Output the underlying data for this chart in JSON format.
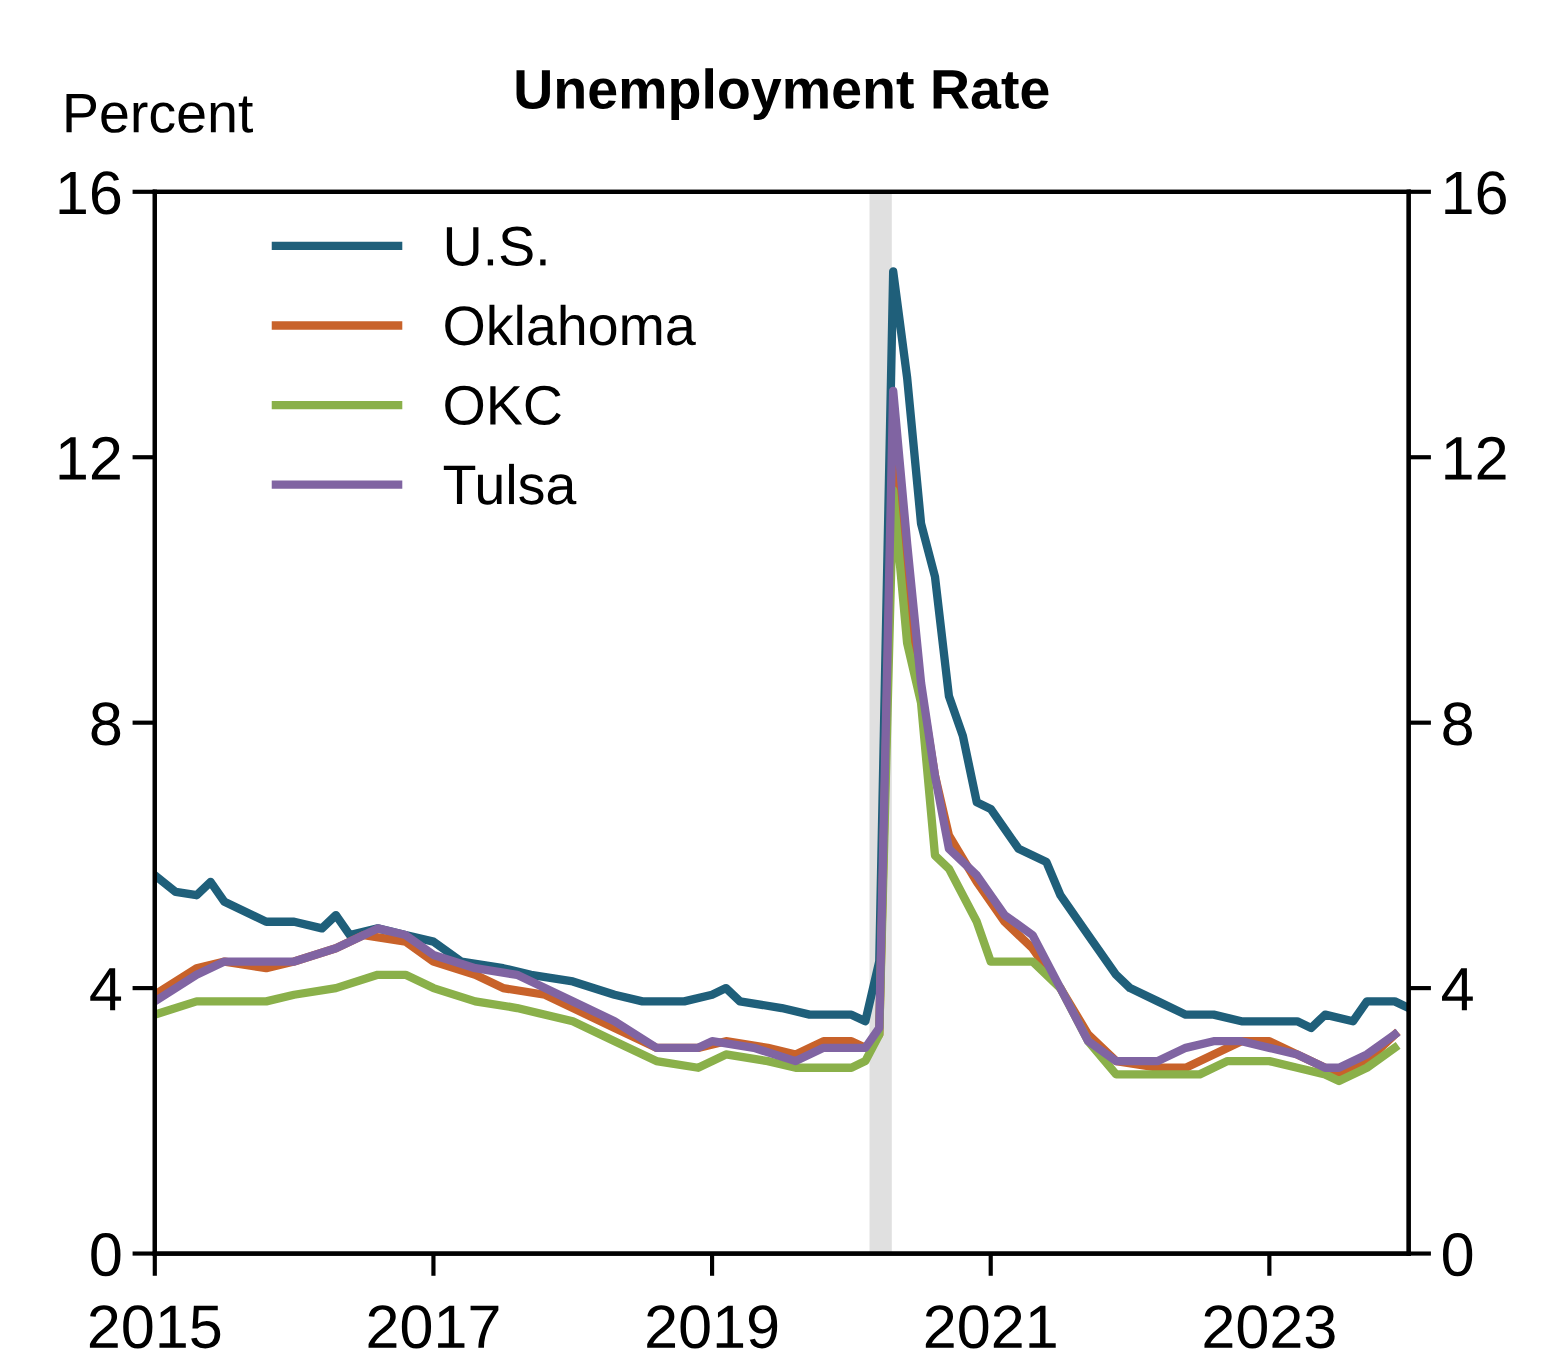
{
  "chart_data": {
    "type": "line",
    "title": "Unemployment Rate",
    "ylabel": "Percent",
    "xlim": [
      2015,
      2024
    ],
    "xticks": [
      2015,
      2017,
      2019,
      2021,
      2023
    ],
    "ylim": [
      0,
      16
    ],
    "yticks": [
      0,
      4,
      8,
      12,
      16
    ],
    "y2lim": [
      0,
      16
    ],
    "y2ticks": [
      0,
      4,
      8,
      12,
      16
    ],
    "grid": false,
    "legend": "top left",
    "marker": "none",
    "line_style": "solid",
    "bands": [
      {
        "axis": "x",
        "from": 2020.13,
        "to": 2020.29,
        "color": "#e0e0e0"
      }
    ],
    "series": [
      {
        "name": "U.S.",
        "color": "#1f5f7a",
        "x": [
          2015.0,
          2015.15,
          2015.3,
          2015.4,
          2015.5,
          2015.8,
          2016.0,
          2016.2,
          2016.3,
          2016.4,
          2016.6,
          2016.8,
          2017.0,
          2017.2,
          2017.5,
          2017.7,
          2018.0,
          2018.3,
          2018.5,
          2018.8,
          2019.0,
          2019.1,
          2019.2,
          2019.5,
          2019.7,
          2019.9,
          2020.0,
          2020.1,
          2020.2,
          2020.3,
          2020.4,
          2020.5,
          2020.6,
          2020.7,
          2020.8,
          2020.9,
          2021.0,
          2021.2,
          2021.4,
          2021.5,
          2021.7,
          2021.9,
          2022.0,
          2022.2,
          2022.4,
          2022.6,
          2022.8,
          2023.0,
          2023.2,
          2023.3,
          2023.4,
          2023.6,
          2023.7,
          2023.9,
          2024.0
        ],
        "values": [
          5.7,
          5.45,
          5.4,
          5.6,
          5.3,
          5.0,
          5.0,
          4.9,
          5.1,
          4.8,
          4.9,
          4.8,
          4.7,
          4.4,
          4.3,
          4.2,
          4.1,
          3.9,
          3.8,
          3.8,
          3.9,
          4.0,
          3.8,
          3.7,
          3.6,
          3.6,
          3.6,
          3.5,
          4.4,
          14.8,
          13.2,
          11.0,
          10.2,
          8.4,
          7.8,
          6.8,
          6.7,
          6.1,
          5.9,
          5.4,
          4.8,
          4.2,
          4.0,
          3.8,
          3.6,
          3.6,
          3.5,
          3.5,
          3.5,
          3.4,
          3.6,
          3.5,
          3.8,
          3.8,
          3.7
        ]
      },
      {
        "name": "Oklahoma",
        "color": "#c8622a",
        "x": [
          2015.0,
          2015.3,
          2015.5,
          2015.8,
          2016.0,
          2016.3,
          2016.5,
          2016.8,
          2017.0,
          2017.3,
          2017.5,
          2017.8,
          2018.0,
          2018.3,
          2018.6,
          2018.9,
          2019.1,
          2019.4,
          2019.6,
          2019.8,
          2020.0,
          2020.1,
          2020.2,
          2020.3,
          2020.4,
          2020.5,
          2020.6,
          2020.7,
          2020.9,
          2021.1,
          2021.3,
          2021.5,
          2021.7,
          2021.9,
          2022.2,
          2022.4,
          2022.6,
          2022.8,
          2023.0,
          2023.2,
          2023.4,
          2023.5,
          2023.7,
          2023.9
        ],
        "values": [
          3.9,
          4.3,
          4.4,
          4.3,
          4.4,
          4.6,
          4.8,
          4.7,
          4.4,
          4.2,
          4.0,
          3.9,
          3.7,
          3.4,
          3.1,
          3.1,
          3.2,
          3.1,
          3.0,
          3.2,
          3.2,
          3.1,
          3.3,
          12.4,
          10.0,
          8.5,
          7.2,
          6.3,
          5.6,
          5.0,
          4.6,
          4.0,
          3.3,
          2.9,
          2.8,
          2.8,
          3.0,
          3.2,
          3.2,
          3.0,
          2.8,
          2.7,
          2.9,
          3.3
        ]
      },
      {
        "name": "OKC",
        "color": "#8ab04a",
        "x": [
          2015.0,
          2015.3,
          2015.8,
          2016.0,
          2016.3,
          2016.6,
          2016.8,
          2017.0,
          2017.3,
          2017.6,
          2018.0,
          2018.3,
          2018.6,
          2018.9,
          2019.1,
          2019.4,
          2019.6,
          2019.8,
          2020.0,
          2020.1,
          2020.2,
          2020.3,
          2020.4,
          2020.5,
          2020.6,
          2020.7,
          2020.9,
          2021.0,
          2021.3,
          2021.5,
          2021.7,
          2021.9,
          2022.2,
          2022.5,
          2022.7,
          2023.0,
          2023.2,
          2023.4,
          2023.5,
          2023.7,
          2023.9
        ],
        "values": [
          3.6,
          3.8,
          3.8,
          3.9,
          4.0,
          4.2,
          4.2,
          4.0,
          3.8,
          3.7,
          3.5,
          3.2,
          2.9,
          2.8,
          3.0,
          2.9,
          2.8,
          2.8,
          2.8,
          2.9,
          3.3,
          11.5,
          9.2,
          8.3,
          6.0,
          5.8,
          5.0,
          4.4,
          4.4,
          4.0,
          3.2,
          2.7,
          2.7,
          2.7,
          2.9,
          2.9,
          2.8,
          2.7,
          2.6,
          2.8,
          3.1
        ]
      },
      {
        "name": "Tulsa",
        "color": "#8064a2",
        "x": [
          2015.0,
          2015.3,
          2015.5,
          2016.0,
          2016.3,
          2016.6,
          2016.8,
          2017.0,
          2017.3,
          2017.6,
          2017.8,
          2018.0,
          2018.3,
          2018.6,
          2018.9,
          2019.0,
          2019.3,
          2019.6,
          2019.8,
          2020.0,
          2020.1,
          2020.2,
          2020.3,
          2020.4,
          2020.5,
          2020.6,
          2020.7,
          2020.9,
          2021.1,
          2021.3,
          2021.5,
          2021.7,
          2021.9,
          2022.2,
          2022.4,
          2022.6,
          2022.8,
          2023.0,
          2023.2,
          2023.4,
          2023.5,
          2023.7,
          2023.9
        ],
        "values": [
          3.8,
          4.2,
          4.4,
          4.4,
          4.6,
          4.9,
          4.8,
          4.5,
          4.3,
          4.2,
          4.0,
          3.8,
          3.5,
          3.1,
          3.1,
          3.2,
          3.1,
          2.9,
          3.1,
          3.1,
          3.1,
          3.4,
          13.0,
          10.7,
          8.6,
          7.2,
          6.1,
          5.7,
          5.1,
          4.8,
          4.0,
          3.2,
          2.9,
          2.9,
          3.1,
          3.2,
          3.2,
          3.1,
          3.0,
          2.8,
          2.8,
          3.0,
          3.3
        ]
      }
    ]
  }
}
